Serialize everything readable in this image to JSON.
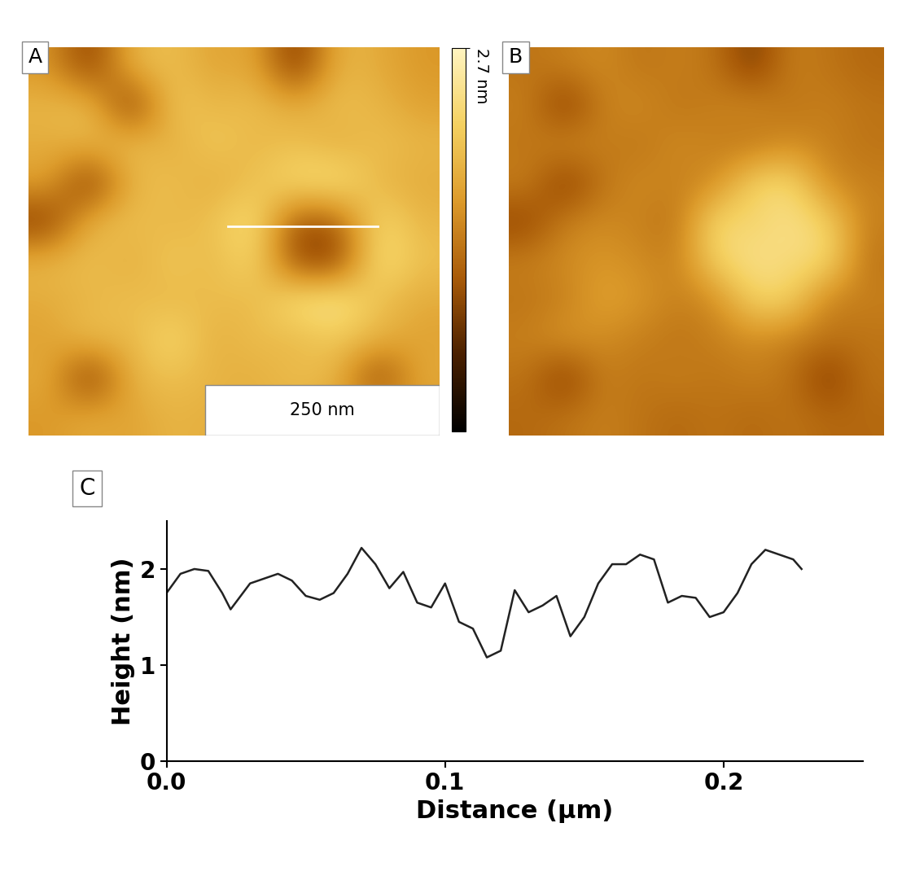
{
  "chart_data": [
    {
      "type": "heatmap",
      "title": "A",
      "tick_labels": false,
      "annotations": [
        "250 nm"
      ],
      "colorbar": {
        "range": [
          0,
          2.7
        ],
        "ticks": [
          {
            "value": 2.7,
            "label": "2.7 nm"
          }
        ]
      },
      "cells": [
        [
          1.6,
          0.8,
          1.9,
          2.0,
          1.7,
          1.8,
          0.7,
          1.9,
          1.8,
          1.6
        ],
        [
          1.9,
          2.0,
          0.7,
          2.1,
          1.9,
          2.0,
          1.8,
          2.0,
          1.9,
          1.7
        ],
        [
          1.8,
          1.9,
          2.0,
          1.8,
          2.1,
          1.9,
          2.0,
          1.8,
          2.0,
          1.9
        ],
        [
          1.7,
          0.7,
          1.9,
          2.0,
          1.8,
          2.0,
          2.3,
          2.4,
          1.9,
          1.8
        ],
        [
          0.8,
          1.9,
          2.0,
          1.9,
          2.0,
          2.4,
          1.0,
          1.1,
          2.3,
          1.9
        ],
        [
          1.9,
          2.0,
          1.8,
          2.1,
          1.9,
          2.3,
          0.9,
          0.8,
          2.4,
          2.0
        ],
        [
          1.8,
          1.9,
          2.0,
          1.9,
          2.0,
          1.9,
          2.4,
          2.5,
          2.0,
          1.8
        ],
        [
          1.7,
          2.0,
          1.9,
          2.3,
          1.8,
          2.0,
          1.9,
          2.1,
          1.9,
          1.7
        ],
        [
          1.8,
          0.7,
          1.9,
          2.0,
          1.9,
          1.8,
          2.0,
          1.9,
          0.8,
          1.8
        ],
        [
          1.6,
          1.8,
          1.7,
          1.9,
          1.8,
          1.9,
          1.8,
          1.7,
          1.8,
          1.6
        ]
      ]
    },
    {
      "type": "heatmap",
      "title": "B",
      "tick_labels": false,
      "cells": [
        [
          1.3,
          1.4,
          1.5,
          1.3,
          1.4,
          1.3,
          0.8,
          1.4,
          1.3,
          1.2
        ],
        [
          1.4,
          0.8,
          1.4,
          1.5,
          1.3,
          1.4,
          1.5,
          1.3,
          1.4,
          1.3
        ],
        [
          1.3,
          1.5,
          1.4,
          1.3,
          1.5,
          1.4,
          1.3,
          1.5,
          1.4,
          1.3
        ],
        [
          1.4,
          0.8,
          1.3,
          1.5,
          1.4,
          1.5,
          2.2,
          2.3,
          1.5,
          1.4
        ],
        [
          0.9,
          1.4,
          1.5,
          1.4,
          1.3,
          2.3,
          2.2,
          2.4,
          2.2,
          1.4
        ],
        [
          1.4,
          1.5,
          1.6,
          1.5,
          1.4,
          2.2,
          2.4,
          2.3,
          2.3,
          1.3
        ],
        [
          1.3,
          1.4,
          1.7,
          1.6,
          1.4,
          1.5,
          2.2,
          2.2,
          1.4,
          1.4
        ],
        [
          1.4,
          1.6,
          1.5,
          1.4,
          1.3,
          1.4,
          1.5,
          1.4,
          1.3,
          1.3
        ],
        [
          1.3,
          0.8,
          1.4,
          1.3,
          1.4,
          1.3,
          1.4,
          1.3,
          0.8,
          1.3
        ],
        [
          1.2,
          1.3,
          1.4,
          1.3,
          1.2,
          1.3,
          1.2,
          1.3,
          1.2,
          1.2
        ]
      ]
    },
    {
      "type": "line",
      "title": "C",
      "x_label": "Distance (µm)",
      "y_label": "Height (nm)",
      "color": "#222222",
      "x": [
        0.0,
        0.005,
        0.01,
        0.015,
        0.02,
        0.023,
        0.03,
        0.04,
        0.045,
        0.05,
        0.055,
        0.06,
        0.065,
        0.07,
        0.075,
        0.08,
        0.085,
        0.09,
        0.095,
        0.1,
        0.105,
        0.11,
        0.115,
        0.12,
        0.125,
        0.13,
        0.135,
        0.14,
        0.145,
        0.15,
        0.155,
        0.16,
        0.165,
        0.17,
        0.175,
        0.18,
        0.185,
        0.19,
        0.195,
        0.2,
        0.205,
        0.21,
        0.215,
        0.22,
        0.225,
        0.228
      ],
      "values": [
        1.75,
        1.95,
        2.0,
        1.98,
        1.75,
        1.58,
        1.85,
        1.95,
        1.88,
        1.72,
        1.68,
        1.75,
        1.95,
        2.22,
        2.05,
        1.8,
        1.97,
        1.65,
        1.6,
        1.85,
        1.45,
        1.38,
        1.08,
        1.15,
        1.78,
        1.55,
        1.62,
        1.72,
        1.3,
        1.5,
        1.85,
        2.05,
        2.05,
        2.15,
        2.1,
        1.65,
        1.72,
        1.7,
        1.5,
        1.55,
        1.75,
        2.05,
        2.2,
        2.15,
        2.1,
        2.0
      ],
      "xlim": [
        0,
        0.25
      ],
      "xticks": [
        0.0,
        0.1,
        0.2
      ],
      "ylim": [
        0,
        2.5
      ],
      "yticks": [
        0,
        1,
        2
      ]
    }
  ]
}
